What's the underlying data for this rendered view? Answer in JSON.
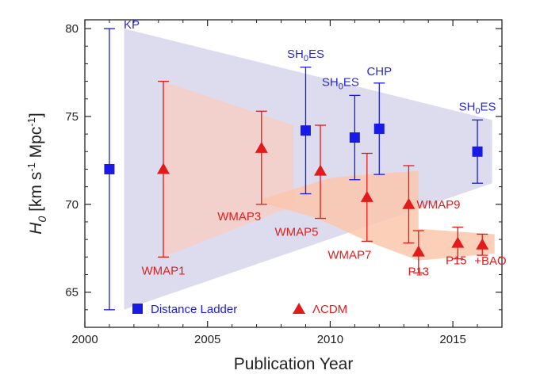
{
  "chart_data": {
    "type": "scatter",
    "xlabel": "Publication Year",
    "ylabel": "H0 [km s-1 Mpc-1]",
    "ylabel_parts": {
      "main": "H",
      "sub": "0",
      "unit_a": " [km s",
      "sup_a": "-1",
      "unit_b": " Mpc",
      "sup_b": "-1",
      "unit_c": "]"
    },
    "xlim": [
      2000,
      2017
    ],
    "ylim": [
      63,
      80.5
    ],
    "xticks": [
      2000,
      2005,
      2010,
      2015
    ],
    "yticks": [
      65,
      70,
      75,
      80
    ],
    "colors": {
      "distance_ladder": "#1a1ae6",
      "lcdm": "#e31a1a",
      "band_blue": "#dcdcee",
      "band_red": "#f6cfc6",
      "band_orange": "#fbc7ad"
    },
    "legend": [
      {
        "label": "Distance Ladder",
        "marker": "square"
      },
      {
        "label": "ΛCDM",
        "marker": "triangle"
      }
    ],
    "series": [
      {
        "name": "Distance Ladder",
        "marker": "square",
        "points": [
          {
            "x": 2001.0,
            "y": 72.0,
            "ylo": 64.0,
            "yhi": 80.0,
            "label": "KP"
          },
          {
            "x": 2009.0,
            "y": 74.2,
            "ylo": 70.6,
            "yhi": 77.8,
            "label": "SH",
            "label_sub": "0",
            "label_tail": "ES"
          },
          {
            "x": 2011.0,
            "y": 73.8,
            "ylo": 71.4,
            "yhi": 76.2,
            "label": "SH",
            "label_sub": "0",
            "label_tail": "ES"
          },
          {
            "x": 2012.0,
            "y": 74.3,
            "ylo": 71.7,
            "yhi": 76.9,
            "label": "CHP"
          },
          {
            "x": 2016.0,
            "y": 73.0,
            "ylo": 71.2,
            "yhi": 74.8,
            "label": "SH",
            "label_sub": "0",
            "label_tail": "ES"
          }
        ]
      },
      {
        "name": "ΛCDM",
        "marker": "triangle",
        "points": [
          {
            "x": 2003.2,
            "y": 72.0,
            "ylo": 67.0,
            "yhi": 77.0,
            "label": "WMAP1"
          },
          {
            "x": 2007.2,
            "y": 73.2,
            "ylo": 70.0,
            "yhi": 75.3,
            "label": "WMAP3"
          },
          {
            "x": 2009.6,
            "y": 71.9,
            "ylo": 69.2,
            "yhi": 74.5,
            "label": "WMAP5"
          },
          {
            "x": 2011.5,
            "y": 70.4,
            "ylo": 67.9,
            "yhi": 72.9,
            "label": "WMAP7"
          },
          {
            "x": 2013.2,
            "y": 70.0,
            "ylo": 67.8,
            "yhi": 72.2,
            "label": "WMAP9"
          },
          {
            "x": 2013.6,
            "y": 67.3,
            "ylo": 66.1,
            "yhi": 68.5,
            "label": "P13"
          },
          {
            "x": 2015.2,
            "y": 67.8,
            "ylo": 66.9,
            "yhi": 68.7,
            "label": "P15"
          },
          {
            "x": 2016.2,
            "y": 67.7,
            "ylo": 67.1,
            "yhi": 68.3,
            "label": "+BAO"
          }
        ]
      }
    ],
    "bands": [
      {
        "name": "distance-ladder-band",
        "points": [
          [
            2001.6,
            80.0
          ],
          [
            2016.6,
            74.8
          ],
          [
            2016.6,
            71.2
          ],
          [
            2001.6,
            64.0
          ]
        ]
      },
      {
        "name": "lcdm-early-band",
        "points": [
          [
            2003.2,
            77.0
          ],
          [
            2008.5,
            74.5
          ],
          [
            2008.5,
            69.9
          ],
          [
            2003.2,
            67.0
          ]
        ]
      },
      {
        "name": "lcdm-late-band",
        "points": [
          [
            2007.2,
            70.3
          ],
          [
            2010.0,
            71.5
          ],
          [
            2011.5,
            71.7
          ],
          [
            2013.6,
            71.9
          ],
          [
            2013.6,
            68.6
          ],
          [
            2016.7,
            68.3
          ],
          [
            2016.7,
            67.2
          ],
          [
            2013.6,
            66.8
          ],
          [
            2011.5,
            67.9
          ],
          [
            2009.5,
            69.2
          ],
          [
            2007.2,
            70.1
          ]
        ]
      }
    ]
  }
}
